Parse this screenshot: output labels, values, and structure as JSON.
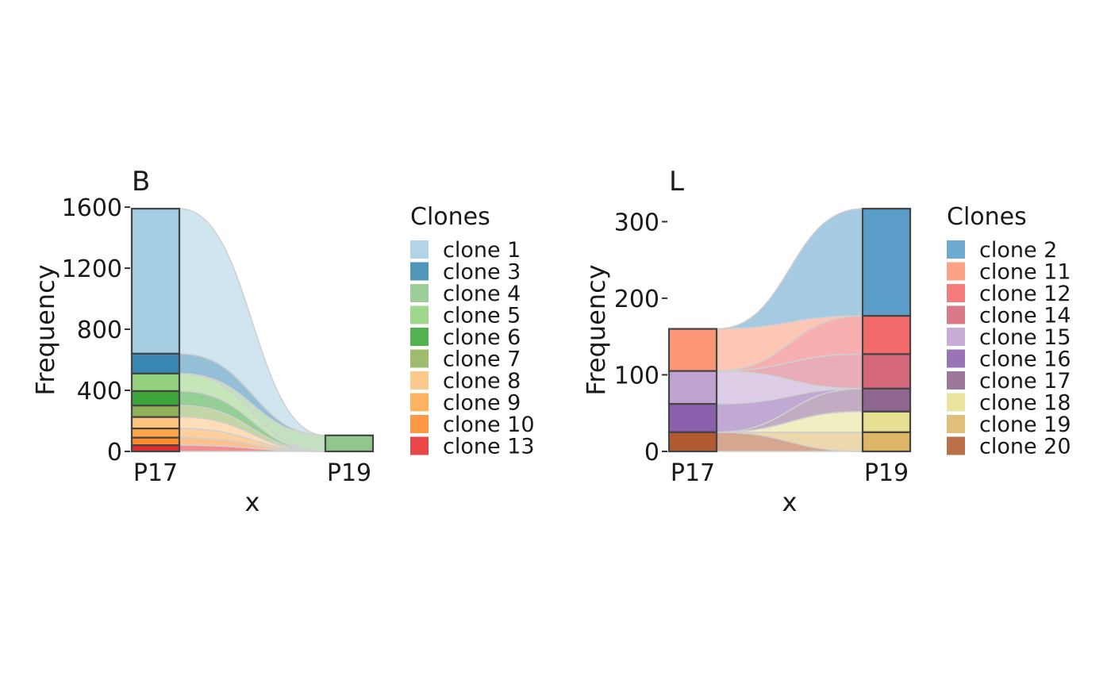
{
  "chart_data": [
    {
      "type": "alluvial",
      "title": "B",
      "xlabel": "x",
      "ylabel": "Frequency",
      "categories": [
        "P17",
        "P19"
      ],
      "ylim": [
        0,
        1600
      ],
      "yticks": [
        0,
        400,
        800,
        1200,
        1600
      ],
      "ytick_labels": [
        "0",
        "400",
        "800",
        "1200",
        "1600"
      ],
      "legend_title": "Clones",
      "legend_position": "right",
      "series": [
        {
          "name": "clone 1",
          "color": "#A6CEE3",
          "values": [
            950,
            0
          ]
        },
        {
          "name": "clone 3",
          "color": "#3A88B3",
          "values": [
            130,
            0
          ]
        },
        {
          "name": "clone 4",
          "color": "#8FC78C",
          "values": [
            0,
            105
          ]
        },
        {
          "name": "clone 5",
          "color": "#93D17D",
          "values": [
            115,
            0
          ]
        },
        {
          "name": "clone 6",
          "color": "#3DA63A",
          "values": [
            95,
            0
          ]
        },
        {
          "name": "clone 7",
          "color": "#91B25A",
          "values": [
            75,
            0
          ]
        },
        {
          "name": "clone 8",
          "color": "#FDC27D",
          "values": [
            75,
            0
          ]
        },
        {
          "name": "clone 9",
          "color": "#FDA74A",
          "values": [
            60,
            0
          ]
        },
        {
          "name": "clone 10",
          "color": "#FE8A2B",
          "values": [
            50,
            0
          ]
        },
        {
          "name": "clone 13",
          "color": "#E52D2F",
          "values": [
            40,
            0
          ]
        }
      ]
    },
    {
      "type": "alluvial",
      "title": "L",
      "xlabel": "x",
      "ylabel": "Frequency",
      "categories": [
        "P17",
        "P19"
      ],
      "ylim": [
        0,
        300
      ],
      "yticks": [
        0,
        100,
        200,
        300
      ],
      "ytick_labels": [
        "0",
        "100",
        "200",
        "300"
      ],
      "legend_title": "Clones",
      "legend_position": "right",
      "series": [
        {
          "name": "clone 2",
          "color": "#5A9DC9",
          "values": [
            0,
            140
          ]
        },
        {
          "name": "clone 11",
          "color": "#FC9676",
          "values": [
            55,
            0
          ]
        },
        {
          "name": "clone 12",
          "color": "#F26A6A",
          "values": [
            0,
            50
          ]
        },
        {
          "name": "clone 14",
          "color": "#D5677A",
          "values": [
            0,
            45
          ]
        },
        {
          "name": "clone 15",
          "color": "#C1A3D2",
          "values": [
            43,
            0
          ]
        },
        {
          "name": "clone 16",
          "color": "#8B61AD",
          "values": [
            37,
            0
          ]
        },
        {
          "name": "clone 17",
          "color": "#8E6690",
          "values": [
            0,
            30
          ]
        },
        {
          "name": "clone 18",
          "color": "#E7DF92",
          "values": [
            0,
            27
          ]
        },
        {
          "name": "clone 19",
          "color": "#DDB668",
          "values": [
            0,
            25
          ]
        },
        {
          "name": "clone 20",
          "color": "#B15C30",
          "values": [
            25,
            0
          ]
        }
      ]
    }
  ]
}
